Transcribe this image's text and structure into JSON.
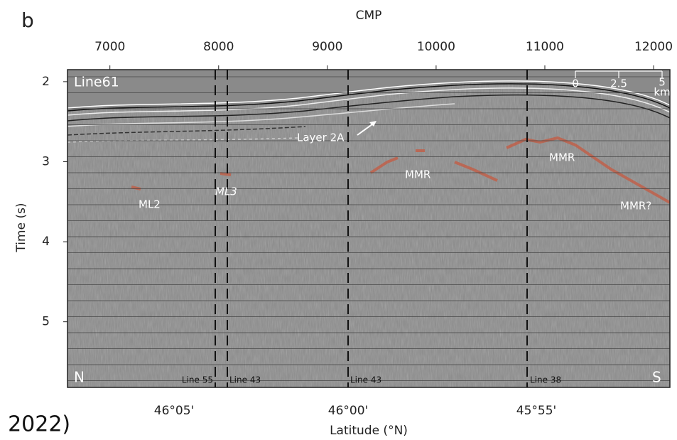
{
  "panel_label": "b",
  "top_axis": {
    "label": "CMP",
    "lim": [
      6610,
      12150
    ],
    "ticks": [
      7000,
      8000,
      9000,
      10000,
      11000,
      12000
    ]
  },
  "left_axis": {
    "label": "Time (s)",
    "lim": [
      1.85,
      5.82
    ],
    "ticks": [
      2,
      3,
      4,
      5
    ]
  },
  "bottom_axis": {
    "label": "Latitude (°N)",
    "ticks": [
      "46°05'",
      "46°00'",
      "45°55'"
    ]
  },
  "line_name": "Line61",
  "directions": [
    "N",
    "S"
  ],
  "scale_bar": [
    "0",
    "2.5",
    "5",
    "km"
  ],
  "annotations": [
    "Layer 2A",
    "MMR",
    "MMR",
    "MMR?",
    "ML2",
    "ML3"
  ],
  "crossing_lines": [
    "Line 55",
    "Line 43",
    "Line 43",
    "Line 38"
  ],
  "caption_fragment": ", 2022)"
}
